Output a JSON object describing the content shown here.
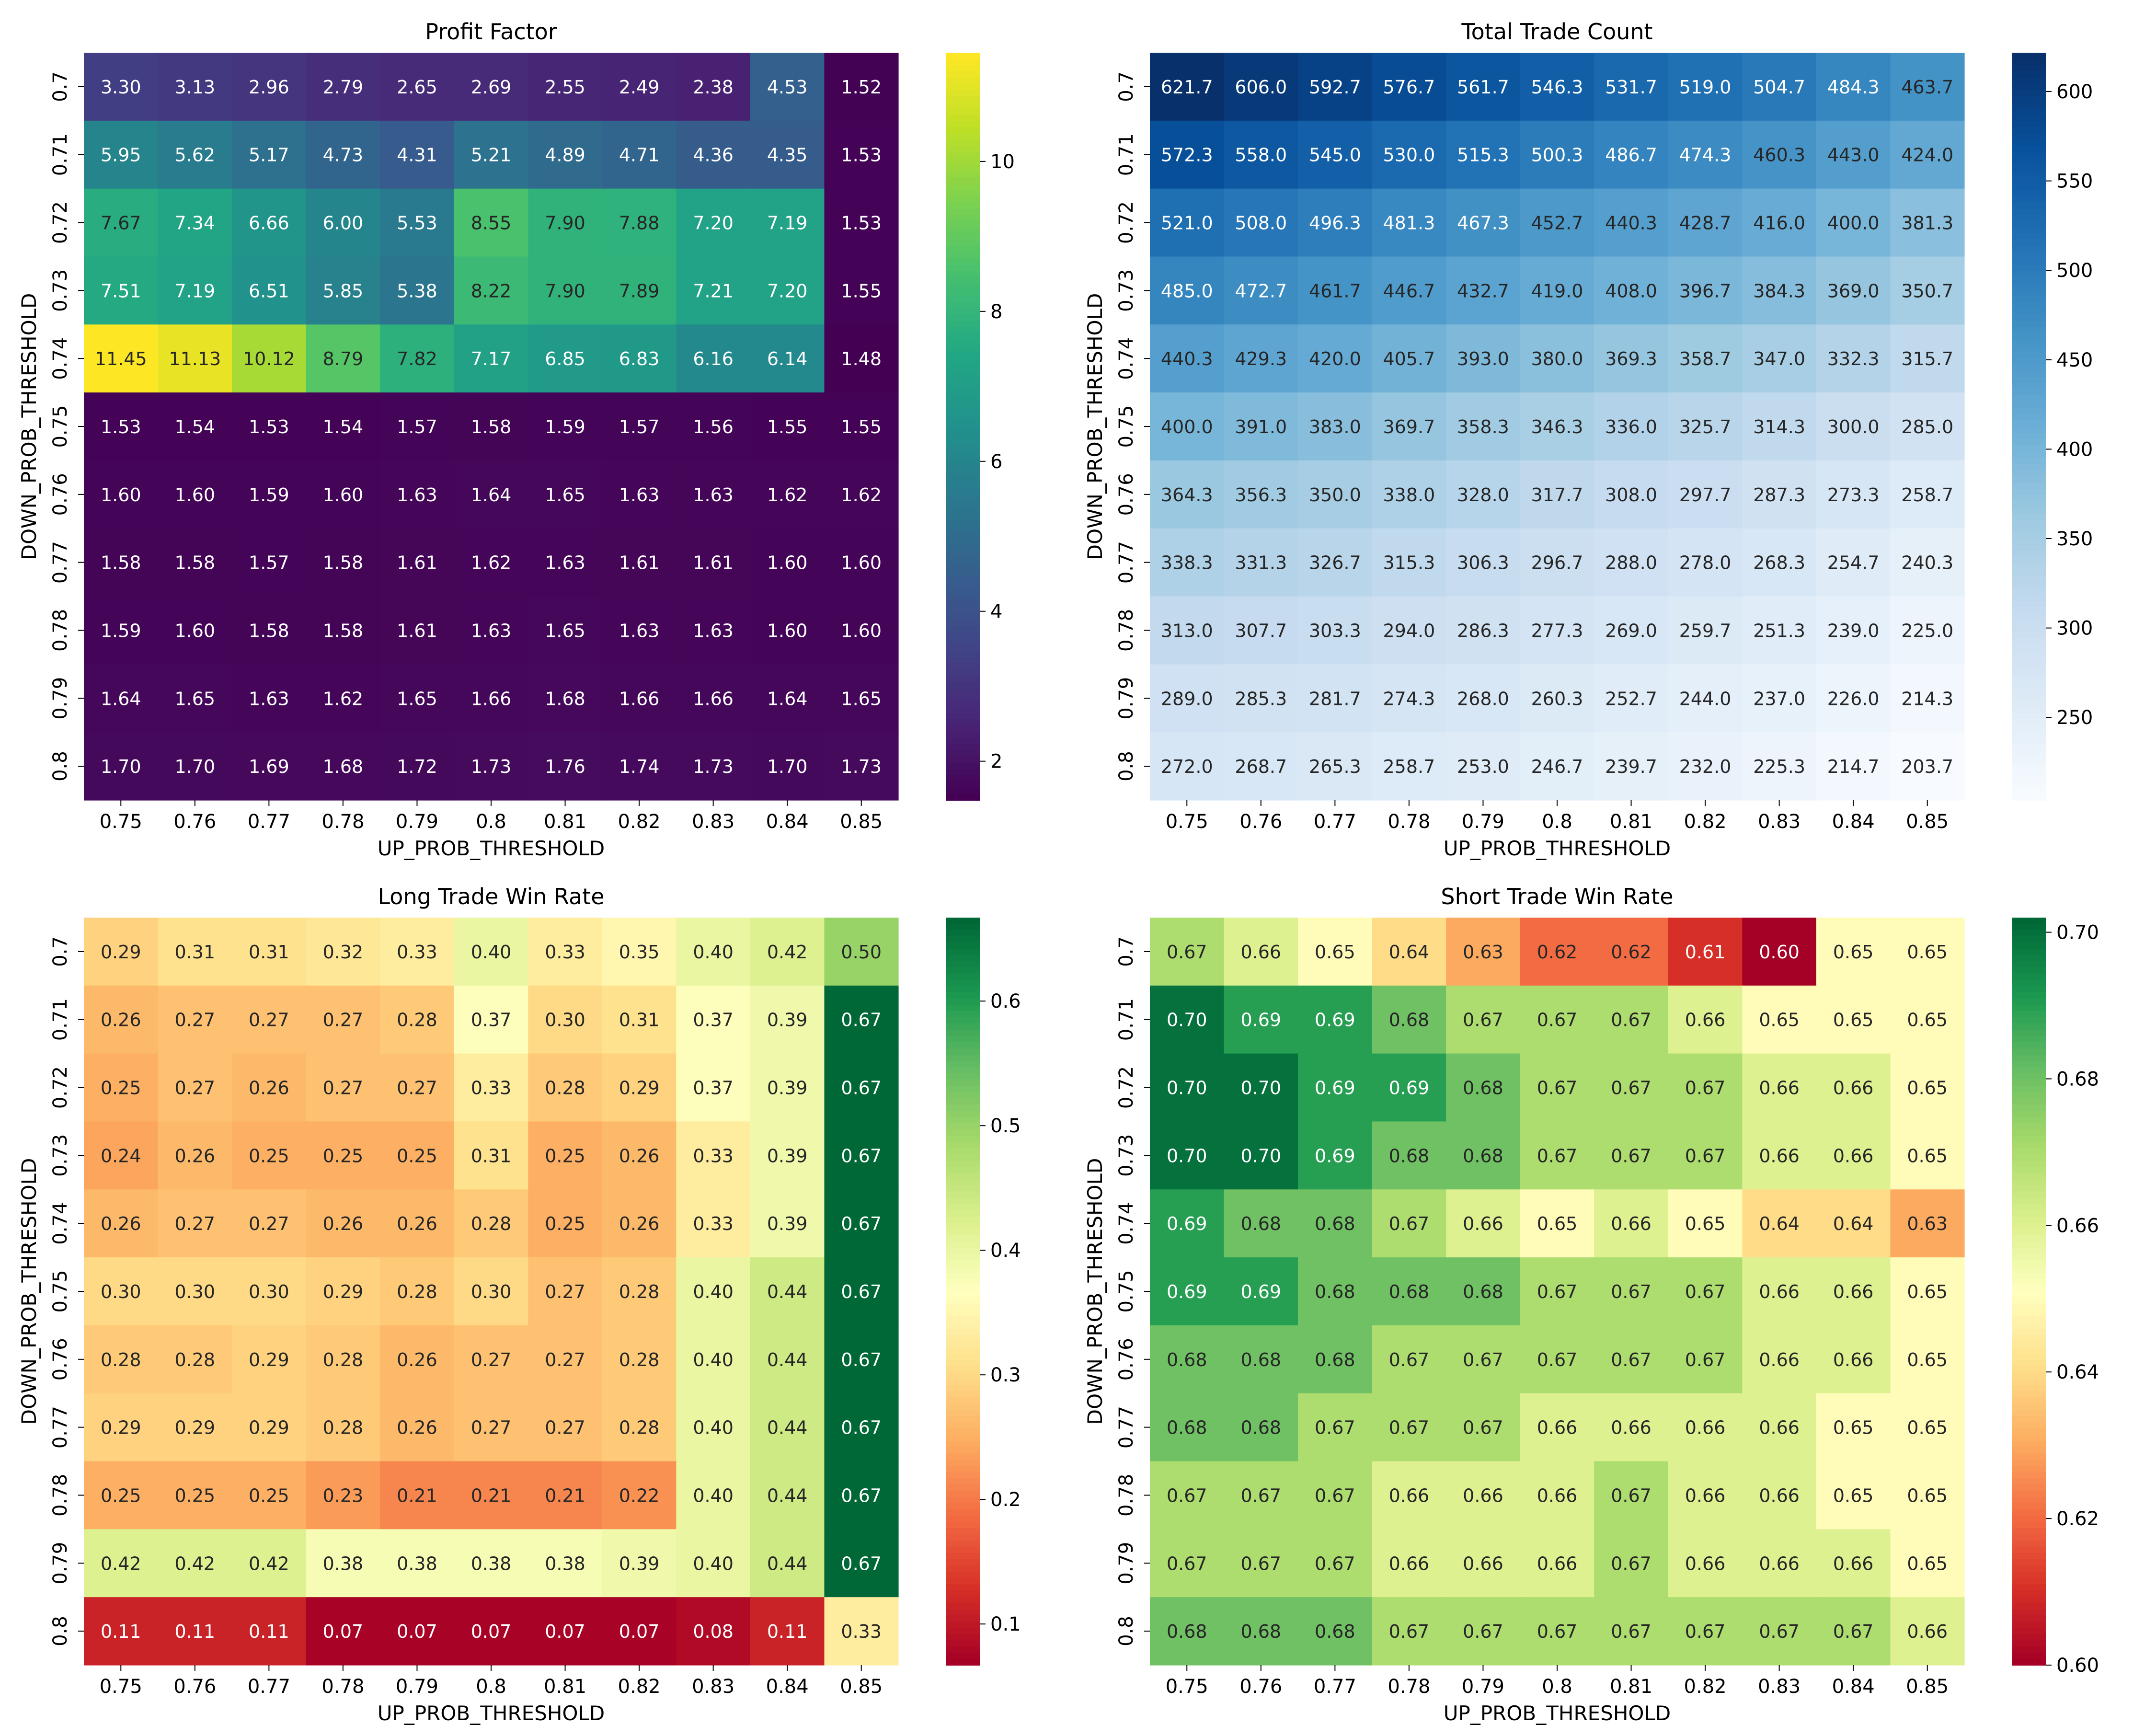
{
  "chart_data": [
    {
      "type": "heatmap",
      "title": "Profit Factor",
      "xlabel": "UP_PROB_THRESHOLD",
      "ylabel": "DOWN_PROB_THRESHOLD",
      "x": [
        "0.75",
        "0.76",
        "0.77",
        "0.78",
        "0.79",
        "0.8",
        "0.81",
        "0.82",
        "0.83",
        "0.84",
        "0.85"
      ],
      "y": [
        "0.7",
        "0.71",
        "0.72",
        "0.73",
        "0.74",
        "0.75",
        "0.76",
        "0.77",
        "0.78",
        "0.79",
        "0.8"
      ],
      "colormap": "viridis",
      "vmin": 1.48,
      "vmax": 11.45,
      "colorbar_ticks": [
        2,
        4,
        6,
        8,
        10
      ],
      "decimals": 2,
      "values": [
        [
          3.3,
          3.13,
          2.96,
          2.79,
          2.65,
          2.69,
          2.55,
          2.49,
          2.38,
          4.53,
          1.52
        ],
        [
          5.95,
          5.62,
          5.17,
          4.73,
          4.31,
          5.21,
          4.89,
          4.71,
          4.36,
          4.35,
          1.53
        ],
        [
          7.67,
          7.34,
          6.66,
          6.0,
          5.53,
          8.55,
          7.9,
          7.88,
          7.2,
          7.19,
          1.53
        ],
        [
          7.51,
          7.19,
          6.51,
          5.85,
          5.38,
          8.22,
          7.9,
          7.89,
          7.21,
          7.2,
          1.55
        ],
        [
          11.45,
          11.13,
          10.12,
          8.79,
          7.82,
          7.17,
          6.85,
          6.83,
          6.16,
          6.14,
          1.48
        ],
        [
          1.53,
          1.54,
          1.53,
          1.54,
          1.57,
          1.58,
          1.59,
          1.57,
          1.56,
          1.55,
          1.55
        ],
        [
          1.6,
          1.6,
          1.59,
          1.6,
          1.63,
          1.64,
          1.65,
          1.63,
          1.63,
          1.62,
          1.62
        ],
        [
          1.58,
          1.58,
          1.57,
          1.58,
          1.61,
          1.62,
          1.63,
          1.61,
          1.61,
          1.6,
          1.6
        ],
        [
          1.59,
          1.6,
          1.58,
          1.58,
          1.61,
          1.63,
          1.65,
          1.63,
          1.63,
          1.6,
          1.6
        ],
        [
          1.64,
          1.65,
          1.63,
          1.62,
          1.65,
          1.66,
          1.68,
          1.66,
          1.66,
          1.64,
          1.65
        ],
        [
          1.7,
          1.7,
          1.69,
          1.68,
          1.72,
          1.73,
          1.76,
          1.74,
          1.73,
          1.7,
          1.73
        ]
      ]
    },
    {
      "type": "heatmap",
      "title": "Total Trade Count",
      "xlabel": "UP_PROB_THRESHOLD",
      "ylabel": "DOWN_PROB_THRESHOLD",
      "x": [
        "0.75",
        "0.76",
        "0.77",
        "0.78",
        "0.79",
        "0.8",
        "0.81",
        "0.82",
        "0.83",
        "0.84",
        "0.85"
      ],
      "y": [
        "0.7",
        "0.71",
        "0.72",
        "0.73",
        "0.74",
        "0.75",
        "0.76",
        "0.77",
        "0.78",
        "0.79",
        "0.8"
      ],
      "colormap": "blues",
      "vmin": 203.7,
      "vmax": 621.7,
      "colorbar_ticks": [
        250,
        300,
        350,
        400,
        450,
        500,
        550,
        600
      ],
      "decimals": 1,
      "values": [
        [
          621.7,
          606.0,
          592.7,
          576.7,
          561.7,
          546.3,
          531.7,
          519.0,
          504.7,
          484.3,
          463.7
        ],
        [
          572.3,
          558.0,
          545.0,
          530.0,
          515.3,
          500.3,
          486.7,
          474.3,
          460.3,
          443.0,
          424.0
        ],
        [
          521.0,
          508.0,
          496.3,
          481.3,
          467.3,
          452.7,
          440.3,
          428.7,
          416.0,
          400.0,
          381.3
        ],
        [
          485.0,
          472.7,
          461.7,
          446.7,
          432.7,
          419.0,
          408.0,
          396.7,
          384.3,
          369.0,
          350.7
        ],
        [
          440.3,
          429.3,
          420.0,
          405.7,
          393.0,
          380.0,
          369.3,
          358.7,
          347.0,
          332.3,
          315.7
        ],
        [
          400.0,
          391.0,
          383.0,
          369.7,
          358.3,
          346.3,
          336.0,
          325.7,
          314.3,
          300.0,
          285.0
        ],
        [
          364.3,
          356.3,
          350.0,
          338.0,
          328.0,
          317.7,
          308.0,
          297.7,
          287.3,
          273.3,
          258.7
        ],
        [
          338.3,
          331.3,
          326.7,
          315.3,
          306.3,
          296.7,
          288.0,
          278.0,
          268.3,
          254.7,
          240.3
        ],
        [
          313.0,
          307.7,
          303.3,
          294.0,
          286.3,
          277.3,
          269.0,
          259.7,
          251.3,
          239.0,
          225.0
        ],
        [
          289.0,
          285.3,
          281.7,
          274.3,
          268.0,
          260.3,
          252.7,
          244.0,
          237.0,
          226.0,
          214.3
        ],
        [
          272.0,
          268.7,
          265.3,
          258.7,
          253.0,
          246.7,
          239.7,
          232.0,
          225.3,
          214.7,
          203.7
        ]
      ]
    },
    {
      "type": "heatmap",
      "title": "Long Trade Win Rate",
      "xlabel": "UP_PROB_THRESHOLD",
      "ylabel": "DOWN_PROB_THRESHOLD",
      "x": [
        "0.75",
        "0.76",
        "0.77",
        "0.78",
        "0.79",
        "0.8",
        "0.81",
        "0.82",
        "0.83",
        "0.84",
        "0.85"
      ],
      "y": [
        "0.7",
        "0.71",
        "0.72",
        "0.73",
        "0.74",
        "0.75",
        "0.76",
        "0.77",
        "0.78",
        "0.79",
        "0.8"
      ],
      "colormap": "rdylgn",
      "vmin": 0.067,
      "vmax": 0.667,
      "colorbar_ticks": [
        0.1,
        0.2,
        0.3,
        0.4,
        0.5,
        0.6
      ],
      "decimals": 2,
      "values": [
        [
          0.29,
          0.31,
          0.31,
          0.32,
          0.33,
          0.4,
          0.33,
          0.35,
          0.4,
          0.42,
          0.5
        ],
        [
          0.26,
          0.27,
          0.27,
          0.27,
          0.28,
          0.37,
          0.3,
          0.31,
          0.37,
          0.39,
          0.67
        ],
        [
          0.25,
          0.27,
          0.26,
          0.27,
          0.27,
          0.33,
          0.28,
          0.29,
          0.37,
          0.39,
          0.67
        ],
        [
          0.24,
          0.26,
          0.25,
          0.25,
          0.25,
          0.31,
          0.25,
          0.26,
          0.33,
          0.39,
          0.67
        ],
        [
          0.26,
          0.27,
          0.27,
          0.26,
          0.26,
          0.28,
          0.25,
          0.26,
          0.33,
          0.39,
          0.67
        ],
        [
          0.3,
          0.3,
          0.3,
          0.29,
          0.28,
          0.3,
          0.27,
          0.28,
          0.4,
          0.44,
          0.67
        ],
        [
          0.28,
          0.28,
          0.29,
          0.28,
          0.26,
          0.27,
          0.27,
          0.28,
          0.4,
          0.44,
          0.67
        ],
        [
          0.29,
          0.29,
          0.29,
          0.28,
          0.26,
          0.27,
          0.27,
          0.28,
          0.4,
          0.44,
          0.67
        ],
        [
          0.25,
          0.25,
          0.25,
          0.23,
          0.21,
          0.21,
          0.21,
          0.22,
          0.4,
          0.44,
          0.67
        ],
        [
          0.42,
          0.42,
          0.42,
          0.38,
          0.38,
          0.38,
          0.38,
          0.39,
          0.4,
          0.44,
          0.67
        ],
        [
          0.11,
          0.11,
          0.11,
          0.07,
          0.07,
          0.07,
          0.07,
          0.07,
          0.08,
          0.11,
          0.33
        ]
      ]
    },
    {
      "type": "heatmap",
      "title": "Short Trade Win Rate",
      "xlabel": "UP_PROB_THRESHOLD",
      "ylabel": "DOWN_PROB_THRESHOLD",
      "x": [
        "0.75",
        "0.76",
        "0.77",
        "0.78",
        "0.79",
        "0.8",
        "0.81",
        "0.82",
        "0.83",
        "0.84",
        "0.85"
      ],
      "y": [
        "0.7",
        "0.71",
        "0.72",
        "0.73",
        "0.74",
        "0.75",
        "0.76",
        "0.77",
        "0.78",
        "0.79",
        "0.8"
      ],
      "colormap": "rdylgn",
      "vmin": 0.6,
      "vmax": 0.702,
      "colorbar_ticks": [
        0.6,
        0.62,
        0.64,
        0.66,
        0.68,
        0.7
      ],
      "colorbar_decimals": 2,
      "decimals": 2,
      "values": [
        [
          0.67,
          0.66,
          0.65,
          0.64,
          0.63,
          0.62,
          0.62,
          0.61,
          0.6,
          0.65,
          0.65
        ],
        [
          0.7,
          0.69,
          0.69,
          0.68,
          0.67,
          0.67,
          0.67,
          0.66,
          0.65,
          0.65,
          0.65
        ],
        [
          0.7,
          0.7,
          0.69,
          0.69,
          0.68,
          0.67,
          0.67,
          0.67,
          0.66,
          0.66,
          0.65
        ],
        [
          0.7,
          0.7,
          0.69,
          0.68,
          0.68,
          0.67,
          0.67,
          0.67,
          0.66,
          0.66,
          0.65
        ],
        [
          0.69,
          0.68,
          0.68,
          0.67,
          0.66,
          0.65,
          0.66,
          0.65,
          0.64,
          0.64,
          0.63
        ],
        [
          0.69,
          0.69,
          0.68,
          0.68,
          0.68,
          0.67,
          0.67,
          0.67,
          0.66,
          0.66,
          0.65
        ],
        [
          0.68,
          0.68,
          0.68,
          0.67,
          0.67,
          0.67,
          0.67,
          0.67,
          0.66,
          0.66,
          0.65
        ],
        [
          0.68,
          0.68,
          0.67,
          0.67,
          0.67,
          0.66,
          0.66,
          0.66,
          0.66,
          0.65,
          0.65
        ],
        [
          0.67,
          0.67,
          0.67,
          0.66,
          0.66,
          0.66,
          0.67,
          0.66,
          0.66,
          0.65,
          0.65
        ],
        [
          0.67,
          0.67,
          0.67,
          0.66,
          0.66,
          0.66,
          0.67,
          0.66,
          0.66,
          0.66,
          0.65
        ],
        [
          0.68,
          0.68,
          0.68,
          0.67,
          0.67,
          0.67,
          0.67,
          0.67,
          0.67,
          0.67,
          0.66
        ]
      ]
    }
  ]
}
